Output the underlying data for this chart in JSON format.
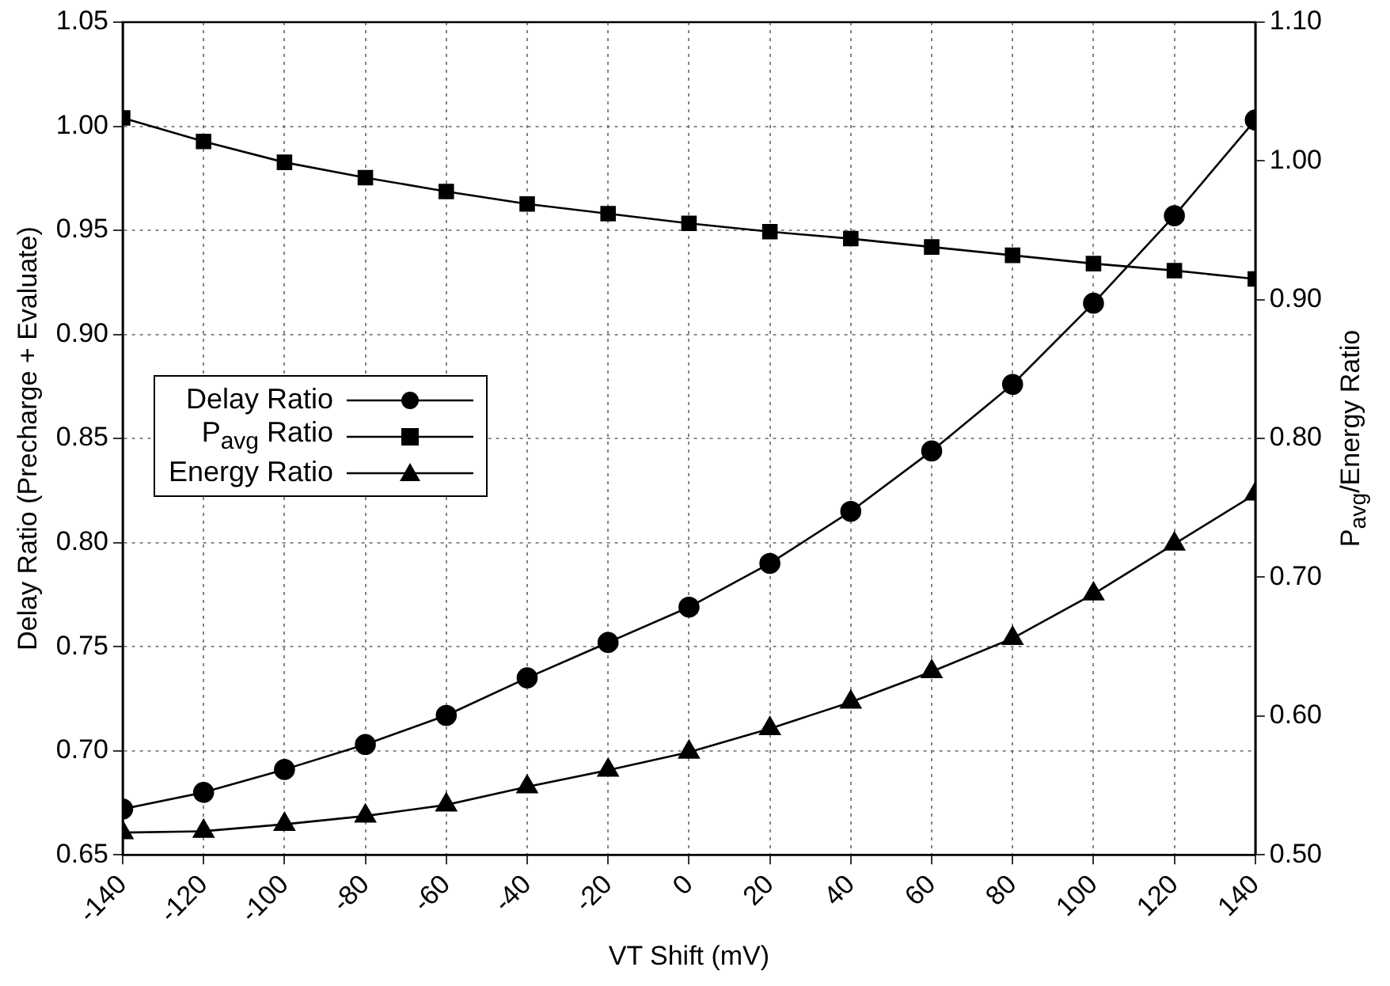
{
  "chart_data": {
    "type": "line",
    "xlabel": "VT Shift (mV)",
    "ylabel": "Delay Ratio (Precharge + Evaluate)",
    "y2label": "P$_{avg}$/Energy Ratio",
    "x": [
      -140,
      -120,
      -100,
      -80,
      -60,
      -40,
      -20,
      0,
      20,
      40,
      60,
      80,
      100,
      120,
      140
    ],
    "xlim": [
      -140,
      140
    ],
    "xticks": [
      -140,
      -120,
      -100,
      -80,
      -60,
      -40,
      -20,
      0,
      20,
      40,
      60,
      80,
      100,
      120,
      140
    ],
    "ylim": [
      0.65,
      1.05
    ],
    "yticks": [
      0.65,
      {
        "value": 0.7,
        "label": "0.70"
      },
      0.75,
      {
        "value": 0.8,
        "label": "0.80"
      },
      0.85,
      {
        "value": 0.9,
        "label": "0.90"
      },
      0.95,
      {
        "value": 1.0,
        "label": "1.00"
      },
      1.05
    ],
    "y2lim": [
      0.5,
      1.1
    ],
    "y2ticks": [
      {
        "value": 0.5,
        "label": "0.50"
      },
      {
        "value": 0.6,
        "label": "0.60"
      },
      {
        "value": 0.7,
        "label": "0.70"
      },
      {
        "value": 0.8,
        "label": "0.80"
      },
      {
        "value": 0.9,
        "label": "0.90"
      },
      {
        "value": 1.0,
        "label": "1.00"
      },
      {
        "value": 1.1,
        "label": "1.10"
      }
    ],
    "grid": true,
    "legend": "left",
    "line_style": "solid",
    "series": [
      {
        "name": "Delay Ratio",
        "color": "#000000",
        "marker": "circle",
        "values": [
          0.672,
          0.68,
          0.691,
          0.703,
          0.717,
          0.735,
          0.752,
          0.769,
          0.79,
          0.815,
          0.844,
          0.876,
          0.915,
          0.957,
          1.003
        ]
      },
      {
        "name": "P$_{avg}$ Ratio",
        "color": "#000000",
        "marker": "square",
        "axis": "y2",
        "values": [
          1.031,
          1.014,
          0.999,
          0.988,
          0.978,
          0.969,
          0.962,
          0.955,
          0.949,
          0.944,
          0.938,
          0.932,
          0.926,
          0.921,
          0.915
        ]
      },
      {
        "name": "Energy Ratio",
        "color": "#000000",
        "marker": "triangle",
        "axis": "y2",
        "values": [
          0.516,
          0.517,
          0.522,
          0.528,
          0.536,
          0.549,
          0.561,
          0.574,
          0.591,
          0.61,
          0.632,
          0.656,
          0.688,
          0.724,
          0.76
        ]
      }
    ]
  }
}
